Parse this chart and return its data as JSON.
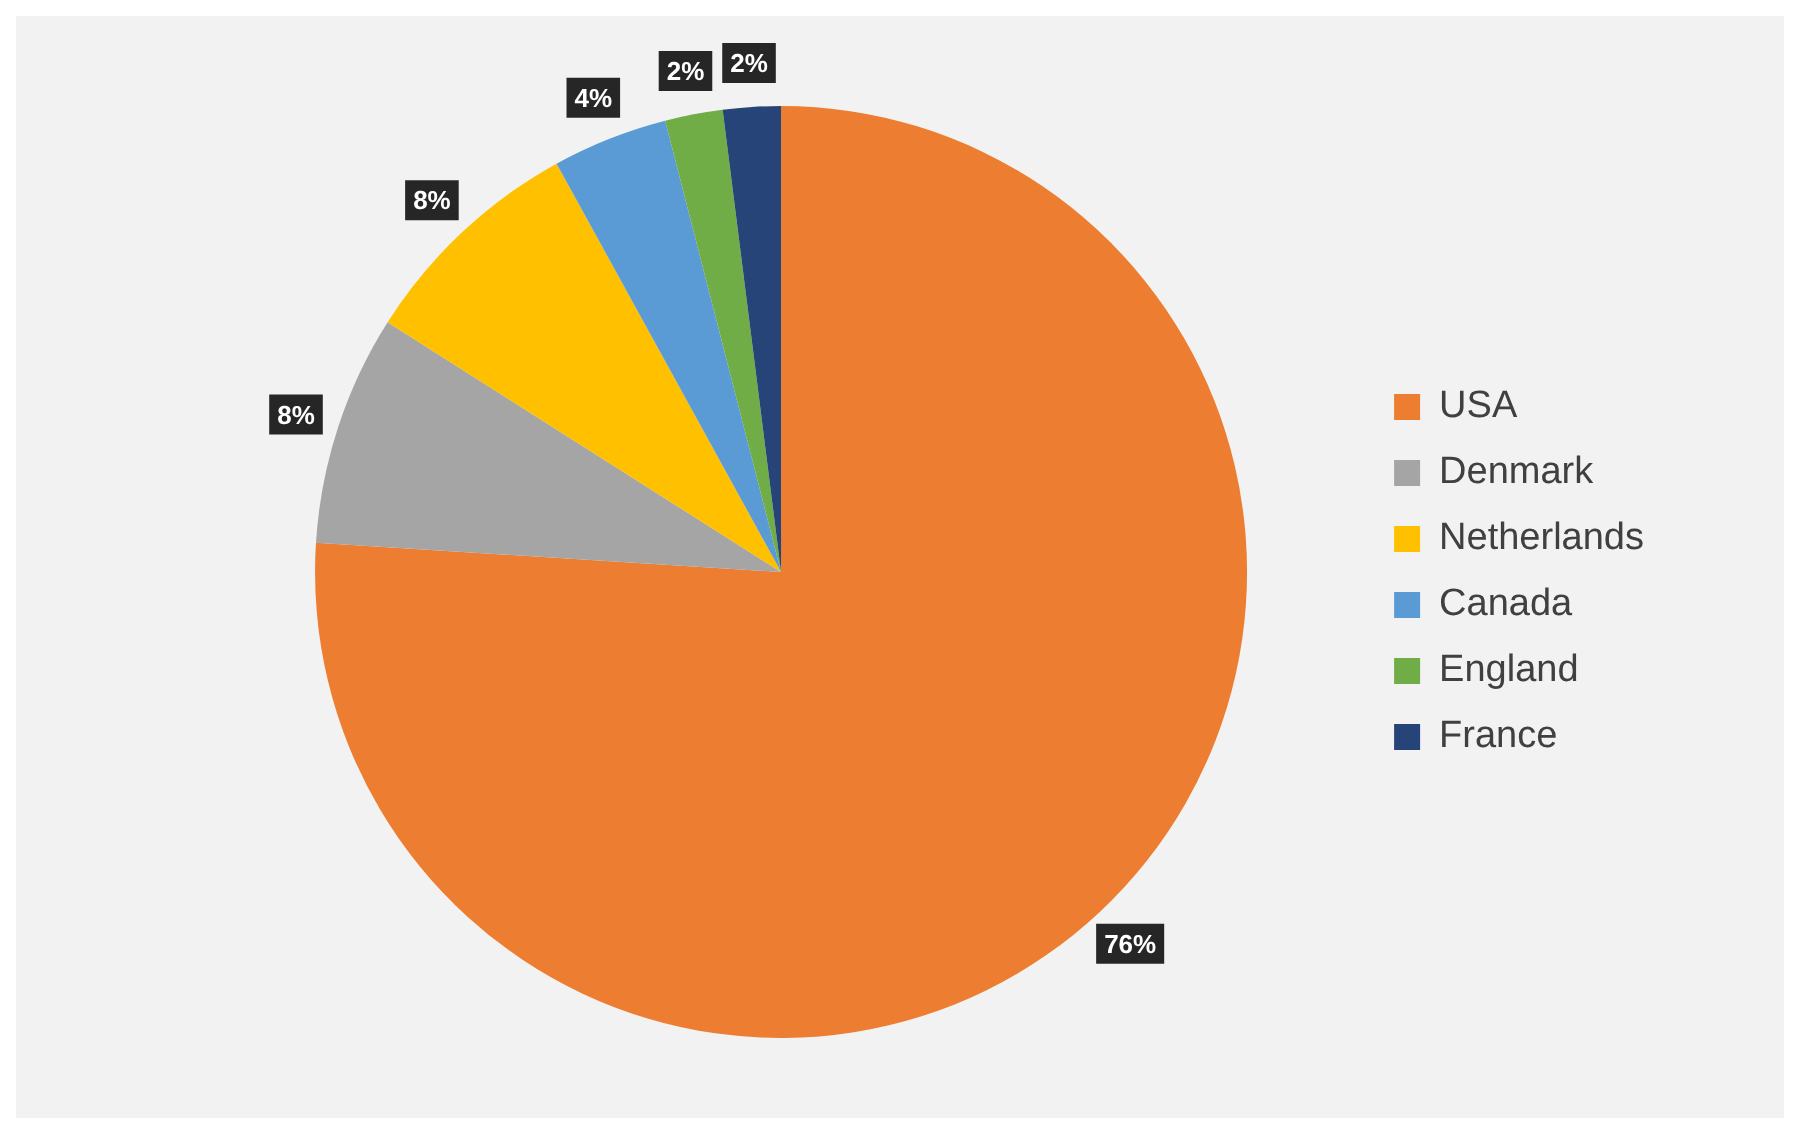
{
  "chart_data": {
    "type": "pie",
    "categories": [
      "USA",
      "Denmark",
      "Netherlands",
      "Canada",
      "England",
      "France"
    ],
    "values": [
      76,
      8,
      8,
      4,
      2,
      2
    ],
    "colors": [
      "#ed7d31",
      "#a5a5a5",
      "#ffc000",
      "#5b9bd5",
      "#70ad47",
      "#264478"
    ],
    "value_labels": [
      "76%",
      "8%",
      "8%",
      "4%",
      "2%",
      "2%"
    ],
    "legend": "right"
  }
}
